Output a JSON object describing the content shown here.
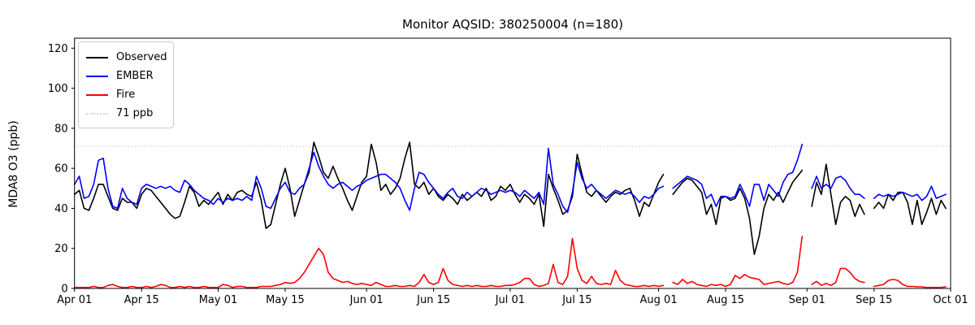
{
  "chart_data": {
    "type": "line",
    "title": "Monitor AQSID: 380250004 (n=180)",
    "xlabel": "",
    "ylabel": "MDA8 O3 (ppb)",
    "ylim": [
      0,
      125
    ],
    "grid": false,
    "legend_position": "upper left",
    "x": {
      "start_day": "Apr 01",
      "end_day": "Sep 30",
      "n_days": 183,
      "tick_labels": [
        "Apr 01",
        "Apr 15",
        "May 01",
        "May 15",
        "Jun 01",
        "Jun 15",
        "Jul 01",
        "Jul 15",
        "Aug 01",
        "Aug 15",
        "Sep 01",
        "Sep 15",
        "Oct 01"
      ],
      "tick_day_index": [
        0,
        14,
        30,
        44,
        61,
        75,
        91,
        105,
        122,
        136,
        153,
        167,
        183
      ]
    },
    "y_tick_labels": [
      "0",
      "20",
      "40",
      "60",
      "80",
      "100",
      "120"
    ],
    "y_tick_values": [
      0,
      20,
      40,
      60,
      80,
      100,
      120
    ],
    "threshold": {
      "label": "71 ppb",
      "value": 71,
      "color": "#d3d3d3",
      "style": "dotted"
    },
    "missing_days_note": "nulls = gaps in all series",
    "series": [
      {
        "name": "Observed",
        "color": "#000000",
        "values": [
          47,
          49,
          40,
          39,
          45,
          52,
          52,
          46,
          40,
          39,
          45,
          43,
          43,
          40,
          47,
          50,
          49,
          46,
          43,
          40,
          37,
          35,
          36,
          43,
          51,
          48,
          41,
          44,
          42,
          45,
          48,
          42,
          47,
          44,
          48,
          49,
          47,
          46,
          53,
          44,
          30,
          32,
          42,
          52,
          60,
          50,
          36,
          44,
          52,
          58,
          73,
          66,
          58,
          55,
          61,
          55,
          50,
          44,
          39,
          46,
          53,
          56,
          72,
          63,
          49,
          52,
          47,
          50,
          55,
          65,
          73,
          52,
          50,
          53,
          47,
          50,
          46,
          44,
          47,
          45,
          42,
          47,
          44,
          46,
          48,
          46,
          50,
          44,
          46,
          51,
          49,
          52,
          47,
          43,
          47,
          45,
          42,
          47,
          31,
          57,
          50,
          44,
          37,
          39,
          46,
          67,
          57,
          48,
          46,
          49,
          46,
          43,
          46,
          48,
          47,
          49,
          50,
          44,
          36,
          43,
          41,
          47,
          53,
          57,
          null,
          47,
          50,
          53,
          55,
          54,
          51,
          48,
          37,
          42,
          32,
          45,
          46,
          44,
          45,
          50,
          45,
          35,
          17,
          26,
          40,
          47,
          44,
          48,
          43,
          48,
          53,
          56,
          59,
          null,
          41,
          53,
          47,
          62,
          47,
          32,
          43,
          46,
          44,
          36,
          42,
          37,
          null,
          40,
          43,
          40,
          47,
          44,
          48,
          48,
          43,
          32,
          44,
          32,
          38,
          45,
          37,
          44,
          40
        ]
      },
      {
        "name": "EMBER",
        "color": "#0000ff",
        "values": [
          52,
          56,
          45,
          46,
          52,
          64,
          65,
          50,
          41,
          40,
          50,
          45,
          43,
          42,
          50,
          52,
          51,
          50,
          51,
          50,
          51,
          49,
          48,
          54,
          52,
          49,
          47,
          45,
          44,
          42,
          45,
          43,
          45,
          44,
          45,
          44,
          46,
          44,
          56,
          50,
          41,
          40,
          45,
          50,
          53,
          48,
          47,
          50,
          52,
          60,
          68,
          61,
          56,
          52,
          50,
          52,
          53,
          51,
          49,
          51,
          52,
          54,
          55,
          56,
          57,
          57,
          55,
          53,
          50,
          44,
          39,
          50,
          58,
          57,
          53,
          50,
          47,
          45,
          48,
          50,
          46,
          45,
          48,
          46,
          48,
          50,
          49,
          47,
          48,
          49,
          48,
          49,
          48,
          46,
          49,
          47,
          45,
          48,
          42,
          70,
          52,
          47,
          41,
          38,
          48,
          63,
          55,
          50,
          52,
          49,
          47,
          45,
          47,
          49,
          48,
          47,
          48,
          46,
          43,
          46,
          45,
          47,
          50,
          51,
          null,
          50,
          52,
          54,
          56,
          55,
          54,
          52,
          45,
          47,
          41,
          46,
          46,
          45,
          46,
          52,
          47,
          41,
          52,
          52,
          44,
          52,
          49,
          46,
          53,
          57,
          58,
          64,
          72,
          null,
          50,
          56,
          50,
          52,
          50,
          55,
          56,
          54,
          50,
          47,
          47,
          45,
          null,
          45,
          47,
          46,
          47,
          46,
          47,
          48,
          47,
          46,
          47,
          44,
          46,
          51,
          45,
          46,
          47
        ]
      },
      {
        "name": "Fire",
        "color": "#ff0000",
        "values": [
          0.5,
          0.5,
          0.5,
          0.5,
          1,
          0.5,
          0.5,
          1.5,
          2,
          1,
          0.5,
          0.5,
          1,
          0.5,
          0.5,
          1,
          0.5,
          1,
          2,
          1.5,
          0.5,
          0.5,
          1,
          0.5,
          1,
          0.5,
          0.5,
          1,
          0.5,
          0.5,
          0.5,
          2,
          1.5,
          0.5,
          1,
          1,
          0.5,
          0.5,
          0.5,
          1,
          1,
          1,
          1.5,
          2,
          3,
          2.5,
          3,
          5,
          8,
          12,
          16,
          20,
          17,
          8,
          5,
          4,
          3,
          3.5,
          2.5,
          2,
          2.5,
          2,
          1.5,
          3,
          2,
          1,
          1,
          1.5,
          1,
          1,
          1.5,
          1,
          3,
          7,
          3,
          2,
          3,
          10,
          4,
          2,
          1.5,
          1,
          1.5,
          1,
          1.5,
          1,
          1,
          1.5,
          1,
          1,
          1.5,
          1.5,
          2,
          3,
          5,
          5,
          2,
          1,
          1.5,
          2.5,
          12,
          3,
          2,
          6,
          25,
          10,
          4,
          2.5,
          6,
          2.5,
          2,
          2.5,
          2,
          9,
          4,
          2,
          1.5,
          1,
          1,
          1.5,
          1,
          1.5,
          1,
          1.5,
          null,
          3,
          2,
          4.5,
          2.5,
          3.5,
          2,
          1.5,
          1,
          2,
          1.5,
          2,
          1,
          2,
          6.5,
          5,
          7,
          5.5,
          5,
          4.5,
          2,
          2.5,
          3,
          3.5,
          2.5,
          2,
          3,
          8,
          26,
          null,
          2,
          3.5,
          1.5,
          2.5,
          1.5,
          3,
          10,
          10,
          8,
          5,
          3.5,
          3,
          null,
          1,
          1.5,
          2,
          4,
          4.5,
          4,
          2,
          1,
          1,
          0.8,
          0.8,
          0.5,
          0.5,
          0.5,
          0.5,
          0.8
        ]
      }
    ],
    "legend": {
      "observed_label": "Observed",
      "ember_label": "EMBER",
      "fire_label": "Fire",
      "threshold_label": "71 ppb"
    }
  }
}
